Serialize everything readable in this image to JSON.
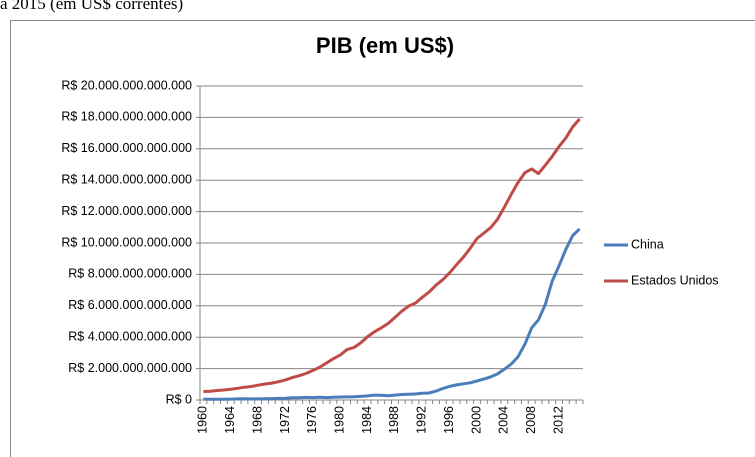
{
  "caption": "a 2015 (em US$ correntes)",
  "chart_data": {
    "type": "line",
    "title": "PIB (em US$)",
    "categories": [
      "1960",
      null,
      null,
      null,
      "1964",
      null,
      null,
      null,
      "1968",
      null,
      null,
      null,
      "1972",
      null,
      null,
      null,
      "1976",
      null,
      null,
      null,
      "1980",
      null,
      null,
      null,
      "1984",
      null,
      null,
      null,
      "1988",
      null,
      null,
      null,
      "1992",
      null,
      null,
      null,
      "1996",
      null,
      null,
      null,
      "2000",
      null,
      null,
      null,
      "2004",
      null,
      null,
      null,
      "2008",
      null,
      null,
      null,
      "2012",
      null,
      null,
      null
    ],
    "series": [
      {
        "name": "China",
        "color": "#4a7ebb",
        "values": [
          60000000000.0,
          50000000000.0,
          47000000000.0,
          50000000000.0,
          59000000000.0,
          70000000000.0,
          76000000000.0,
          72000000000.0,
          70000000000.0,
          79000000000.0,
          92000000000.0,
          100000000000.0,
          114000000000.0,
          139000000000.0,
          144000000000.0,
          163000000000.0,
          154000000000.0,
          175000000000.0,
          150000000000.0,
          178000000000.0,
          191000000000.0,
          196000000000.0,
          205000000000.0,
          230000000000.0,
          260000000000.0,
          310000000000.0,
          300000000000.0,
          273000000000.0,
          312000000000.0,
          348000000000.0,
          361000000000.0,
          383000000000.0,
          427000000000.0,
          444000000000.0,
          564000000000.0,
          734000000000.0,
          864000000000.0,
          962000000000.0,
          1029000000000.0,
          1094000000000.0,
          1211000000000.0,
          1339000000000.0,
          1471000000000.0,
          1660000000000.0,
          1955000000000.0,
          2286000000000.0,
          2752000000000.0,
          3552000000000.0,
          4598000000000.0,
          5110000000000.0,
          6101000000000.0,
          7573000000000.0,
          8561000000000.0,
          9607000000000.0,
          10480000000000.0,
          10900000000000.0
        ]
      },
      {
        "name": "Estados Unidos",
        "color": "#be4b48",
        "values": [
          543000000000.0,
          563000000000.0,
          605000000000.0,
          638000000000.0,
          686000000000.0,
          744000000000.0,
          815000000000.0,
          862000000000.0,
          943000000000.0,
          1019000000000.0,
          1075000000000.0,
          1168000000000.0,
          1282000000000.0,
          1429000000000.0,
          1549000000000.0,
          1689000000000.0,
          1877000000000.0,
          2086000000000.0,
          2357000000000.0,
          2632000000000.0,
          2863000000000.0,
          3211000000000.0,
          3345000000000.0,
          3638000000000.0,
          4041000000000.0,
          4347000000000.0,
          4590000000000.0,
          4870000000000.0,
          5253000000000.0,
          5658000000000.0,
          5980000000000.0,
          6174000000000.0,
          6539000000000.0,
          6879000000000.0,
          7309000000000.0,
          7664000000000.0,
          8100000000000.0,
          8609000000000.0,
          9089000000000.0,
          9661000000000.0,
          10285000000000.0,
          10622000000000.0,
          10978000000000.0,
          11511000000000.0,
          12275000000000.0,
          13094000000000.0,
          13856000000000.0,
          14478000000000.0,
          14719000000000.0,
          14419000000000.0,
          14964000000000.0,
          15518000000000.0,
          16155000000000.0,
          16692000000000.0,
          17393000000000.0,
          17900000000000.0
        ]
      }
    ],
    "ylim": [
      0,
      20000000000000
    ],
    "yticks": [
      {
        "value": 0,
        "label": "R$ 0"
      },
      {
        "value": 2000000000000,
        "label": "R$ 2.000.000.000.000"
      },
      {
        "value": 4000000000000,
        "label": "R$ 4.000.000.000.000"
      },
      {
        "value": 6000000000000,
        "label": "R$ 6.000.000.000.000"
      },
      {
        "value": 8000000000000,
        "label": "R$ 8.000.000.000.000"
      },
      {
        "value": 10000000000000,
        "label": "R$ 10.000.000.000.000"
      },
      {
        "value": 12000000000000,
        "label": "R$ 12.000.000.000.000"
      },
      {
        "value": 14000000000000,
        "label": "R$ 14.000.000.000.000"
      },
      {
        "value": 16000000000000,
        "label": "R$ 16.000.000.000.000"
      },
      {
        "value": 18000000000000,
        "label": "R$ 18.000.000.000.000"
      },
      {
        "value": 20000000000000,
        "label": "R$ 20.000.000.000.000"
      }
    ],
    "grid": true,
    "legend": "right"
  }
}
